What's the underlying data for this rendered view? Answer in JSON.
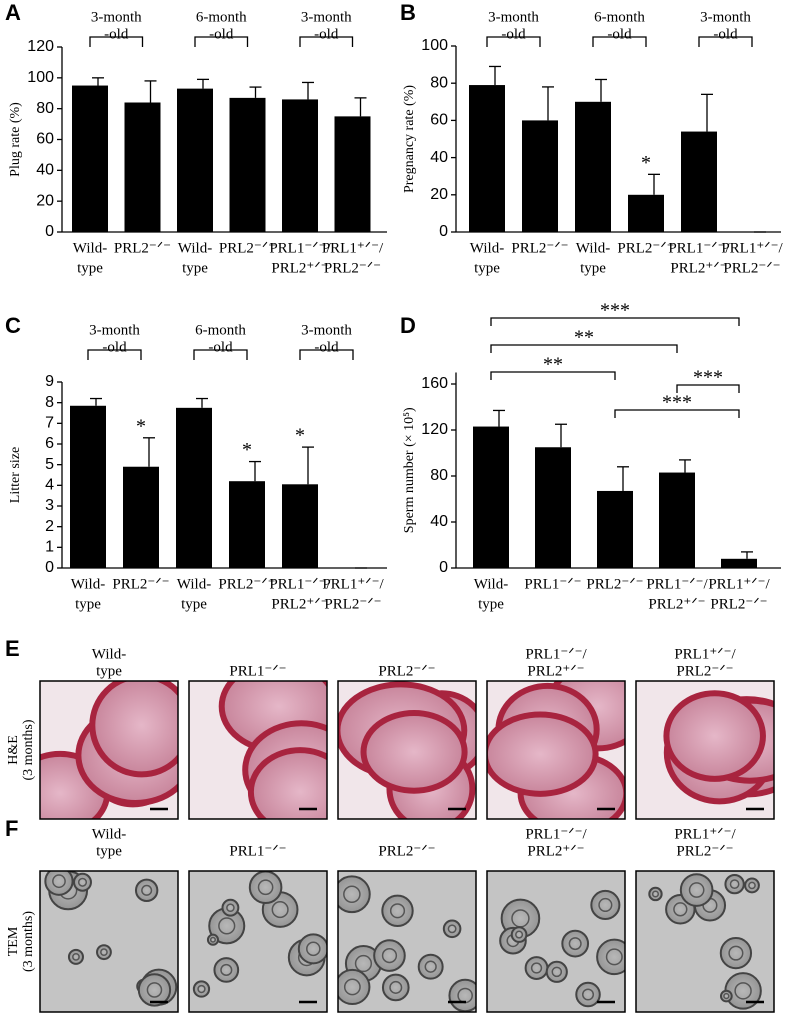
{
  "chart_data": [
    {
      "type": "bar",
      "letter": "A",
      "ylabel": "Plug rate (%)",
      "color": "#000000",
      "categories": [
        [
          "Wild-",
          "type"
        ],
        [
          "PRL2⁻ᐟ⁻"
        ],
        [
          "Wild-",
          "type"
        ],
        [
          "PRL2⁻ᐟ⁻"
        ],
        [
          "PRL1⁻ᐟ⁻/",
          "PRL2⁺ᐟ⁻"
        ],
        [
          "PRL1⁺ᐟ⁻/",
          "PRL2⁻ᐟ⁻"
        ]
      ],
      "values": [
        95,
        84,
        93,
        87,
        86,
        75
      ],
      "errors": [
        5,
        14,
        6,
        7,
        11,
        12
      ],
      "stars": [
        null,
        null,
        null,
        null,
        null,
        null
      ],
      "groups": [
        [
          "3-month",
          "-old"
        ],
        [
          "6-month",
          "-old"
        ],
        [
          "3-month",
          "-old"
        ]
      ],
      "ylim": [
        0,
        120
      ],
      "yticks": [
        0,
        20,
        40,
        60,
        80,
        100,
        120
      ]
    },
    {
      "type": "bar",
      "letter": "B",
      "ylabel": "Pregnancy rate (%)",
      "color": "#000000",
      "categories": [
        [
          "Wild-",
          "type"
        ],
        [
          "PRL2⁻ᐟ⁻"
        ],
        [
          "Wild-",
          "type"
        ],
        [
          "PRL2⁻ᐟ⁻"
        ],
        [
          "PRL1⁻ᐟ⁻/",
          "PRL2⁺ᐟ⁻"
        ],
        [
          "PRL1⁺ᐟ⁻/",
          "PRL2⁻ᐟ⁻"
        ]
      ],
      "values": [
        79,
        60,
        70,
        20,
        54,
        0
      ],
      "errors": [
        10,
        18,
        12,
        11,
        20,
        0
      ],
      "stars": [
        null,
        null,
        null,
        "*",
        null,
        null
      ],
      "groups": [
        [
          "3-month",
          "-old"
        ],
        [
          "6-month",
          "-old"
        ],
        [
          "3-month",
          "-old"
        ]
      ],
      "ylim": [
        0,
        100
      ],
      "yticks": [
        0,
        20,
        40,
        60,
        80,
        100
      ]
    },
    {
      "type": "bar",
      "letter": "C",
      "ylabel": "Litter size",
      "color": "#000000",
      "categories": [
        [
          "Wild-",
          "type"
        ],
        [
          "PRL2⁻ᐟ⁻"
        ],
        [
          "Wild-",
          "type"
        ],
        [
          "PRL2⁻ᐟ⁻"
        ],
        [
          "PRL1⁻ᐟ⁻/",
          "PRL2⁺ᐟ⁻"
        ],
        [
          "PRL1⁺ᐟ⁻/",
          "PRL2⁻ᐟ⁻"
        ]
      ],
      "values": [
        7.85,
        4.9,
        7.75,
        4.2,
        4.05,
        0
      ],
      "errors": [
        0.35,
        1.4,
        0.45,
        0.95,
        1.8,
        0
      ],
      "stars": [
        null,
        "*",
        null,
        "*",
        "*",
        null
      ],
      "groups": [
        [
          "3-month",
          "-old"
        ],
        [
          "6-month",
          "-old"
        ],
        [
          "3-month",
          "-old"
        ]
      ],
      "ylim": [
        0,
        9
      ],
      "yticks": [
        0,
        1,
        2,
        3,
        4,
        5,
        6,
        7,
        8,
        9
      ]
    },
    {
      "type": "bar",
      "letter": "D",
      "ylabel": "Sperm number (× 10⁵)",
      "color": "#000000",
      "categories": [
        [
          "Wild-",
          "type"
        ],
        [
          "PRL1⁻ᐟ⁻"
        ],
        [
          "PRL2⁻ᐟ⁻"
        ],
        [
          "PRL1⁻ᐟ⁻/",
          "PRL2⁺ᐟ⁻"
        ],
        [
          "PRL1⁺ᐟ⁻/",
          "PRL2⁻ᐟ⁻"
        ]
      ],
      "values": [
        123,
        105,
        67,
        83,
        8
      ],
      "errors": [
        14,
        20,
        21,
        11,
        6
      ],
      "comparisons": [
        "***",
        "**",
        "**",
        "***",
        "***"
      ],
      "ylim": [
        0,
        170
      ],
      "yticks": [
        0,
        40,
        80,
        120,
        160
      ]
    }
  ],
  "panels": [
    {
      "letter": "E",
      "row_label": [
        "H&E",
        "(3 months)"
      ],
      "columns": [
        [
          "Wild-",
          "type"
        ],
        [
          "PRL1⁻ᐟ⁻"
        ],
        [
          "PRL2⁻ᐟ⁻"
        ],
        [
          "PRL1⁻ᐟ⁻/",
          "PRL2⁺ᐟ⁻"
        ],
        [
          "PRL1⁺ᐟ⁻/",
          "PRL2⁻ᐟ⁻"
        ]
      ]
    },
    {
      "letter": "F",
      "row_label": [
        "TEM",
        "(3 months)"
      ],
      "columns": [
        [
          "Wild-",
          "type"
        ],
        [
          "PRL1⁻ᐟ⁻"
        ],
        [
          "PRL2⁻ᐟ⁻"
        ],
        [
          "PRL1⁻ᐟ⁻/",
          "PRL2⁺ᐟ⁻"
        ],
        [
          "PRL1⁺ᐟ⁻/",
          "PRL2⁻ᐟ⁻"
        ]
      ]
    }
  ]
}
